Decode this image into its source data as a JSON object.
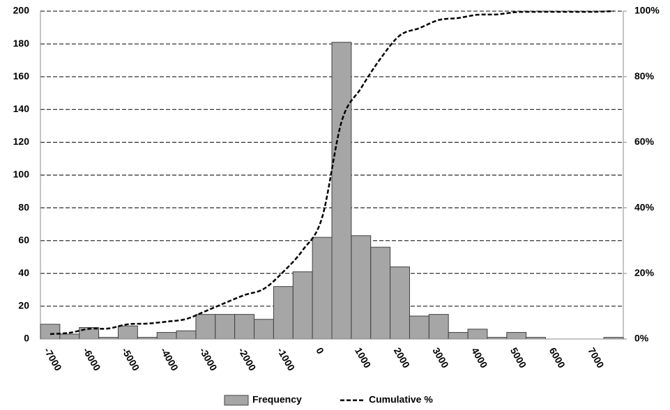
{
  "chart_data": {
    "type": "histogram",
    "categories": [
      "-7000",
      null,
      "-6000",
      null,
      "-5000",
      null,
      "-4000",
      null,
      "-3000",
      null,
      "-2000",
      null,
      "-1000",
      null,
      "0",
      null,
      "1000",
      null,
      "2000",
      null,
      "3000",
      null,
      "4000",
      null,
      "5000",
      null,
      "6000",
      null,
      "7000",
      null
    ],
    "series": [
      {
        "name": "Frequency",
        "color": "#a6a6a6",
        "values": [
          9,
          3,
          7,
          1,
          8,
          1,
          4,
          5,
          15,
          15,
          15,
          12,
          32,
          41,
          62,
          181,
          63,
          56,
          44,
          14,
          15,
          4,
          6,
          1,
          4,
          1,
          0,
          0,
          0,
          1
        ]
      },
      {
        "name": "Cumulative %",
        "color": "#000000",
        "axis": "y2",
        "values": [
          1.5,
          1.9,
          3.1,
          3.2,
          4.5,
          4.7,
          5.3,
          6.1,
          8.5,
          11.0,
          13.4,
          15.3,
          20.5,
          27.1,
          37.1,
          66.3,
          76.5,
          85.5,
          92.6,
          94.8,
          97.3,
          97.9,
          98.9,
          99.0,
          99.7,
          99.8,
          99.8,
          99.8,
          99.8,
          100
        ]
      }
    ],
    "ylim": [
      0,
      200
    ],
    "yticks": [
      0,
      20,
      40,
      60,
      80,
      100,
      120,
      140,
      160,
      180,
      200
    ],
    "y2lim": [
      0,
      100
    ],
    "y2ticks": [
      {
        "value": 0,
        "label": "0%"
      },
      {
        "value": 20,
        "label": "20%"
      },
      {
        "value": 40,
        "label": "40%"
      },
      {
        "value": 60,
        "label": "60%"
      },
      {
        "value": 80,
        "label": "80%"
      },
      {
        "value": 100,
        "label": "100%"
      }
    ],
    "grid": true,
    "legend": "bottom"
  }
}
